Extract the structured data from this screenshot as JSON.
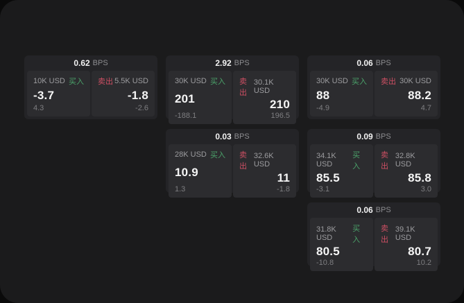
{
  "labels": {
    "buy": "买入",
    "sell": "卖出",
    "bps_unit": "BPS"
  },
  "colors": {
    "buy_accent": "#4ba26a",
    "sell_accent": "#cd4f63",
    "panel_bg": "#1b1b1c",
    "card_bg": "#242427",
    "pane_bg": "#2c2c2f"
  },
  "cards": [
    {
      "bps": "0.62",
      "buy": {
        "amount": "10K USD",
        "value": "-3.7",
        "sub": "4.3"
      },
      "sell": {
        "amount": "5.5K USD",
        "value": "-1.8",
        "sub": "-2.6"
      }
    },
    {
      "bps": "2.92",
      "buy": {
        "amount": "30K USD",
        "value": "201",
        "sub": "-188.1"
      },
      "sell": {
        "amount": "30.1K USD",
        "value": "210",
        "sub": "196.5"
      }
    },
    {
      "bps": "0.06",
      "buy": {
        "amount": "30K USD",
        "value": "88",
        "sub": "-4.9"
      },
      "sell": {
        "amount": "30K USD",
        "value": "88.2",
        "sub": "4.7"
      }
    },
    {
      "bps": "0.03",
      "buy": {
        "amount": "28K USD",
        "value": "10.9",
        "sub": "1.3"
      },
      "sell": {
        "amount": "32.6K USD",
        "value": "11",
        "sub": "-1.8"
      }
    },
    {
      "bps": "0.09",
      "buy": {
        "amount": "34.1K USD",
        "value": "85.5",
        "sub": "-3.1"
      },
      "sell": {
        "amount": "32.8K USD",
        "value": "85.8",
        "sub": "3.0"
      }
    },
    {
      "bps": "0.06",
      "buy": {
        "amount": "31.8K USD",
        "value": "80.5",
        "sub": "-10.8"
      },
      "sell": {
        "amount": "39.1K USD",
        "value": "80.7",
        "sub": "10.2"
      }
    }
  ]
}
